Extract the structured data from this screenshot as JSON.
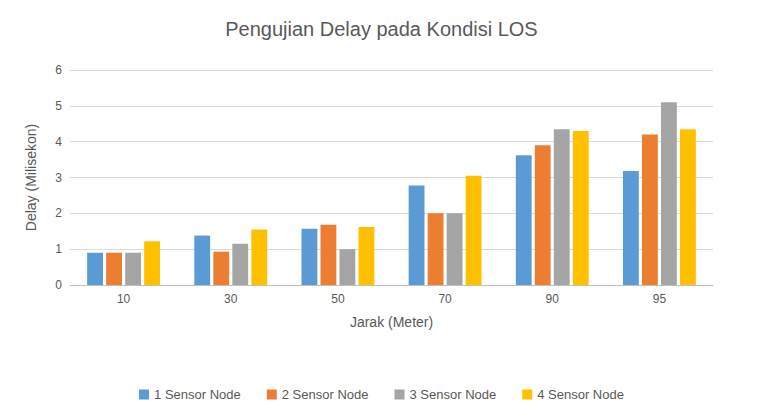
{
  "chart_data": {
    "type": "bar",
    "title": "Pengujian Delay pada Kondisi LOS",
    "x_label": "Jarak (Meter)",
    "y_label": "Delay (Milisekon)",
    "categories": [
      "10",
      "30",
      "50",
      "70",
      "90",
      "95"
    ],
    "series": [
      {
        "name": "1 Sensor Node",
        "color": "#5b9bd5",
        "values": [
          0.9,
          1.38,
          1.57,
          2.78,
          3.62,
          3.18
        ]
      },
      {
        "name": "2 Sensor Node",
        "color": "#ed7d31",
        "values": [
          0.9,
          0.93,
          1.68,
          2.0,
          3.9,
          4.2
        ]
      },
      {
        "name": "3 Sensor Node",
        "color": "#a5a5a5",
        "values": [
          0.9,
          1.15,
          1.0,
          2.0,
          4.35,
          5.1
        ]
      },
      {
        "name": "4 Sensor Node",
        "color": "#ffc000",
        "values": [
          1.22,
          1.55,
          1.62,
          3.05,
          4.3,
          4.35
        ]
      }
    ],
    "ylim": [
      0,
      6
    ],
    "yticks": [
      0,
      1,
      2,
      3,
      4,
      5,
      6
    ],
    "grid": true,
    "legend": "bottom"
  }
}
